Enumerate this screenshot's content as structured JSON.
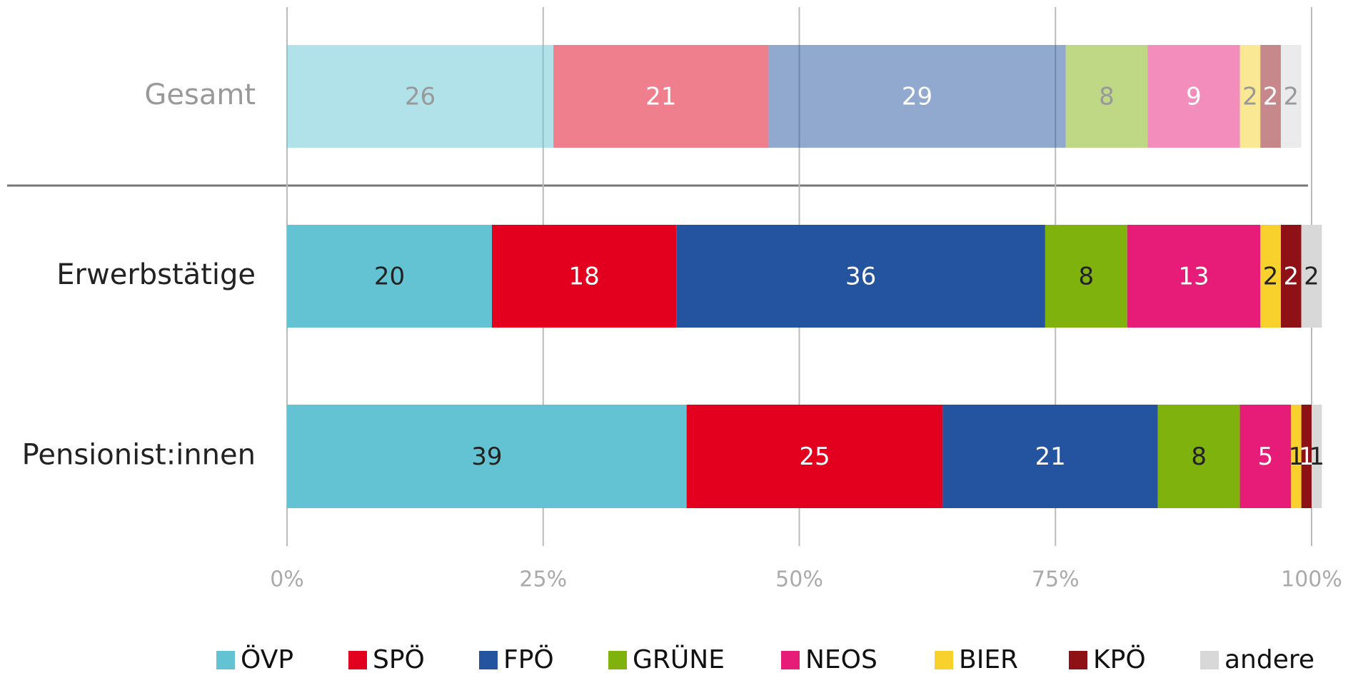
{
  "chart_data": {
    "type": "stacked_bar_horizontal",
    "categories": [
      "Gesamt",
      "Erwerbstätige",
      "Pensionist:innen"
    ],
    "series": [
      {
        "name": "ÖVP",
        "color": "#63c3d3",
        "values": [
          26,
          20,
          39
        ]
      },
      {
        "name": "SPÖ",
        "color": "#e2001e",
        "values": [
          21,
          18,
          25
        ]
      },
      {
        "name": "FPÖ",
        "color": "#2453a0",
        "values": [
          29,
          36,
          21
        ]
      },
      {
        "name": "GRÜNE",
        "color": "#80b20e",
        "values": [
          8,
          8,
          8
        ]
      },
      {
        "name": "NEOS",
        "color": "#e71c78",
        "values": [
          9,
          13,
          5
        ]
      },
      {
        "name": "BIER",
        "color": "#f8d12c",
        "values": [
          2,
          2,
          1
        ]
      },
      {
        "name": "KPÖ",
        "color": "#8e1115",
        "values": [
          2,
          2,
          1
        ]
      },
      {
        "name": "andere",
        "color": "#d8d8d8",
        "values": [
          2,
          2,
          1
        ]
      }
    ],
    "xlim": [
      0,
      100
    ],
    "xticks": [
      {
        "value": 0,
        "label": "0%"
      },
      {
        "value": 25,
        "label": "25%"
      },
      {
        "value": 50,
        "label": "50%"
      },
      {
        "value": 75,
        "label": "75%"
      },
      {
        "value": 100,
        "label": "100%"
      }
    ],
    "grid": true,
    "legend": "bottom"
  }
}
